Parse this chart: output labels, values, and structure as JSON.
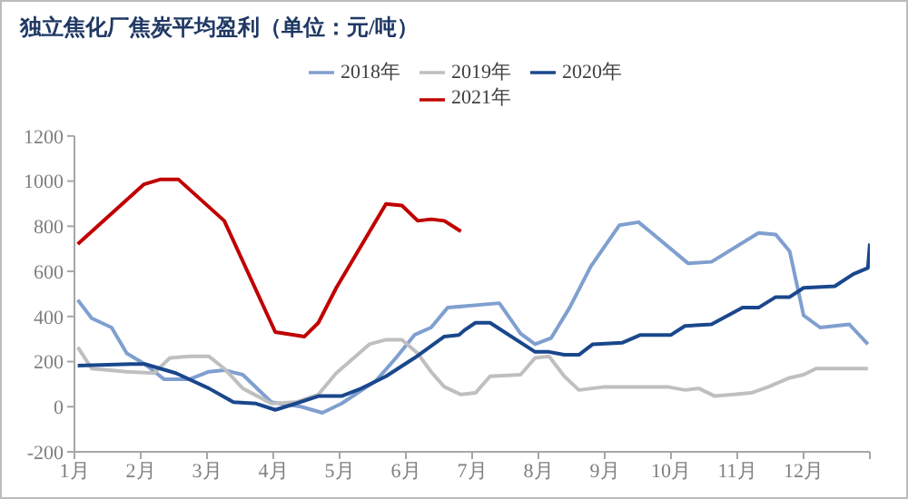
{
  "chart_data": {
    "type": "line",
    "title": "独立焦化厂焦炭平均盈利（单位：元/吨）",
    "xlim": [
      1,
      13
    ],
    "xticks": [
      {
        "value": 1,
        "label": "1月"
      },
      {
        "value": 2,
        "label": "2月"
      },
      {
        "value": 3,
        "label": "3月"
      },
      {
        "value": 4,
        "label": "4月"
      },
      {
        "value": 5,
        "label": "5月"
      },
      {
        "value": 6,
        "label": "6月"
      },
      {
        "value": 7,
        "label": "7月"
      },
      {
        "value": 8,
        "label": "8月"
      },
      {
        "value": 9,
        "label": "9月"
      },
      {
        "value": 10,
        "label": "10月"
      },
      {
        "value": 11,
        "label": "11月"
      },
      {
        "value": 12,
        "label": "12月"
      },
      {
        "value": 13,
        "label": null
      }
    ],
    "ylim": [
      -200,
      1200
    ],
    "yticks": [
      -200,
      0,
      200,
      400,
      600,
      800,
      1000,
      1200
    ],
    "grid": false,
    "legend": "top",
    "marker": "none",
    "line_style": "solid",
    "series": [
      {
        "name": "2018年",
        "color": "#7f9fcf",
        "x": [
          1.05,
          1.26,
          1.56,
          1.79,
          2.06,
          2.35,
          2.74,
          3.03,
          3.26,
          3.54,
          3.97,
          4.42,
          4.74,
          5.03,
          5.55,
          5.85,
          6.13,
          6.38,
          6.63,
          7.41,
          7.73,
          7.95,
          8.19,
          8.47,
          8.79,
          9.22,
          9.51,
          9.68,
          10.26,
          10.61,
          11.32,
          11.58,
          11.79,
          12.0,
          12.25,
          12.69,
          12.97
        ],
        "values": [
          473,
          392,
          351,
          236,
          189,
          122,
          122,
          155,
          162,
          142,
          20,
          0,
          -27,
          14,
          115,
          216,
          318,
          351,
          439,
          459,
          324,
          277,
          304,
          439,
          622,
          804,
          818,
          777,
          635,
          642,
          770,
          763,
          689,
          405,
          351,
          365,
          277
        ]
      },
      {
        "name": "2019年",
        "color": "#bfbfbf",
        "x": [
          1.05,
          1.26,
          1.79,
          2.2,
          2.44,
          2.74,
          3.03,
          3.26,
          3.54,
          3.97,
          4.34,
          4.68,
          4.95,
          5.45,
          5.7,
          5.94,
          6.18,
          6.38,
          6.58,
          6.83,
          7.05,
          7.27,
          7.73,
          7.95,
          8.16,
          8.39,
          8.61,
          9.0,
          9.32,
          9.54,
          9.95,
          10.21,
          10.42,
          10.66,
          10.95,
          11.21,
          11.47,
          11.79,
          12.0,
          12.19,
          12.97
        ],
        "values": [
          264,
          169,
          155,
          149,
          216,
          223,
          223,
          169,
          81,
          14,
          20,
          54,
          149,
          277,
          297,
          297,
          236,
          155,
          88,
          54,
          61,
          135,
          142,
          216,
          223,
          135,
          74,
          88,
          88,
          88,
          88,
          74,
          81,
          47,
          54,
          61,
          88,
          128,
          142,
          169,
          169
        ]
      },
      {
        "name": "2020年",
        "color": "#1a478c",
        "x": [
          1.05,
          1.85,
          2.06,
          2.53,
          3.03,
          3.4,
          3.74,
          4.03,
          4.34,
          4.68,
          5.03,
          5.33,
          5.7,
          6.13,
          6.58,
          6.8,
          6.88,
          7.05,
          7.27,
          7.95,
          8.16,
          8.39,
          8.61,
          8.82,
          9.27,
          9.54,
          10.0,
          10.21,
          10.61,
          11.08,
          11.32,
          11.58,
          11.79,
          12.0,
          12.47,
          12.75,
          12.97,
          13.0
        ],
        "values": [
          182,
          189,
          189,
          149,
          81,
          20,
          14,
          -14,
          14,
          47,
          47,
          81,
          135,
          216,
          311,
          318,
          338,
          372,
          372,
          243,
          243,
          230,
          230,
          277,
          284,
          318,
          318,
          358,
          365,
          439,
          439,
          486,
          486,
          527,
          534,
          588,
          615,
          723
        ]
      },
      {
        "name": "2021年",
        "color": "#c00000",
        "x": [
          1.05,
          2.05,
          2.29,
          2.57,
          3.26,
          4.03,
          4.47,
          4.68,
          4.95,
          5.7,
          5.94,
          6.18,
          6.38,
          6.58,
          6.83
        ],
        "values": [
          721,
          986,
          1007,
          1007,
          824,
          331,
          311,
          372,
          527,
          899,
          892,
          824,
          831,
          824,
          777
        ]
      }
    ]
  }
}
